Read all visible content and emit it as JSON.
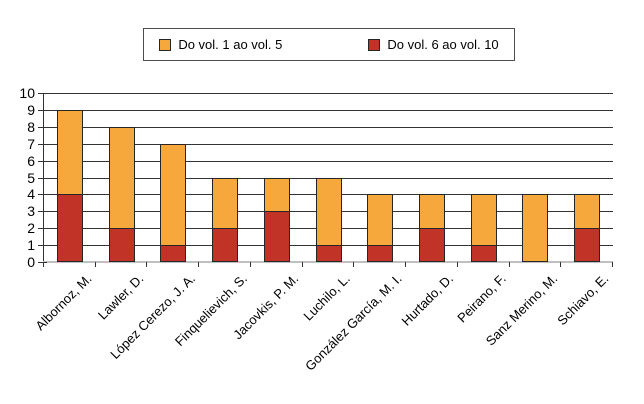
{
  "legend": {
    "items": [
      {
        "label": "Do vol. 1 ao vol. 5",
        "color": "#F7A83D"
      },
      {
        "label": "Do vol. 6 ao vol. 10",
        "color": "#C23327"
      }
    ]
  },
  "chart_data": {
    "type": "bar",
    "stacked": true,
    "title": "",
    "xlabel": "",
    "ylabel": "",
    "ylim": [
      0,
      10
    ],
    "yticks": [
      0,
      1,
      2,
      3,
      4,
      5,
      6,
      7,
      8,
      9,
      10
    ],
    "grid": true,
    "legend_position": "top-center",
    "categories": [
      "Albornoz, M.",
      "Lawler, D.",
      "López Cerezo, J. A.",
      "Finquelievich, S.",
      "Jacovkis, P. M.",
      "Luchilo, L.",
      "González García, M. I.",
      "Hurtado, D.",
      "Peirano, F.",
      "Sanz Merino, M.",
      "Schiavo, E."
    ],
    "series": [
      {
        "name": "Do vol. 6 ao vol. 10",
        "color": "#C23327",
        "stack_order": "bottom",
        "values": [
          4,
          2,
          1,
          2,
          3,
          1,
          1,
          2,
          1,
          0,
          2
        ]
      },
      {
        "name": "Do vol. 1 ao vol. 5",
        "color": "#F7A83D",
        "stack_order": "top",
        "values": [
          5,
          6,
          6,
          3,
          2,
          4,
          3,
          2,
          3,
          4,
          2
        ]
      }
    ],
    "totals": [
      9,
      8,
      7,
      5,
      5,
      5,
      4,
      4,
      4,
      4,
      4
    ]
  },
  "colors": {
    "background": "#ffffff",
    "bar_border": "#262626",
    "gridline": "#333333",
    "axis_baseline": "#c0c0c0",
    "tick": "#333333",
    "text": "#000000",
    "legend_border": "#4d4d4d"
  }
}
